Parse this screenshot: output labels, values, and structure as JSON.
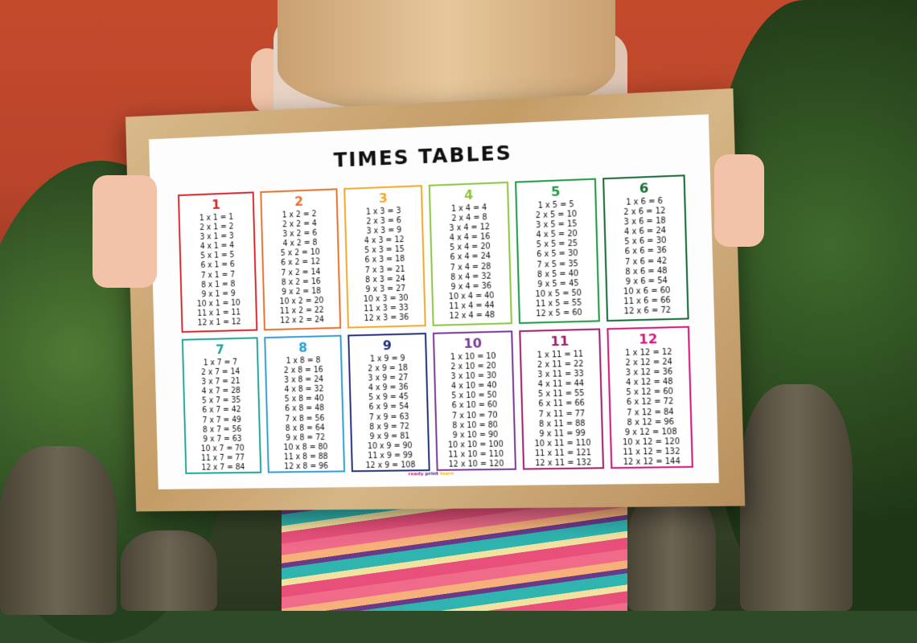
{
  "poster": {
    "title": "TIMES TABLES",
    "brand": {
      "word1": "ready",
      "word2": "print",
      "word3": "learn",
      "colors": [
        "#d4197e",
        "#4a2a7a",
        "#f2b51c"
      ]
    },
    "tables": [
      {
        "number": "1",
        "color": "#d8232a",
        "lines": [
          "1 x 1 = 1",
          "2 x 1 = 2",
          "3 x 1 = 3",
          "4 x 1 = 4",
          "5 x 1 = 5",
          "6 x 1 = 6",
          "7 x 1 = 7",
          "8 x 1 = 8",
          "9 x 1 = 9",
          "10 x 1 = 10",
          "11 x 1 = 11",
          "12 x 1 = 12"
        ]
      },
      {
        "number": "2",
        "color": "#e8702a",
        "lines": [
          "1 x 2 = 2",
          "2 x 2 = 4",
          "3 x 2 = 6",
          "4 x 2 = 8",
          "5 x 2 = 10",
          "6 x 2 = 12",
          "7 x 2 = 14",
          "8 x 2 = 16",
          "9 x 2 = 18",
          "10 x 2 = 20",
          "11 x 2 = 22",
          "12 x 2 = 24"
        ]
      },
      {
        "number": "3",
        "color": "#f2a82a",
        "lines": [
          "1 x 3 = 3",
          "2 x 3 = 6",
          "3 x 3 = 9",
          "4 x 3 = 12",
          "5 x 3 = 15",
          "6 x 3 = 18",
          "7 x 3 = 21",
          "8 x 3 = 24",
          "9 x 3 = 27",
          "10 x 3 = 30",
          "11 x 3 = 33",
          "12 x 3 = 36"
        ]
      },
      {
        "number": "4",
        "color": "#8dc63f",
        "lines": [
          "1 x 4 = 4",
          "2 x 4 = 8",
          "3 x 4 = 12",
          "4 x 4 = 16",
          "5 x 4 = 20",
          "6 x 4 = 24",
          "7 x 4 = 28",
          "8 x 4 = 32",
          "9 x 4 = 36",
          "10 x 4 = 40",
          "11 x 4 = 44",
          "12 x 4 = 48"
        ]
      },
      {
        "number": "5",
        "color": "#1e9b45",
        "lines": [
          "1 x 5 = 5",
          "2 x 5 = 10",
          "3 x 5 = 15",
          "4 x 5 = 20",
          "5 x 5 = 25",
          "6 x 5 = 30",
          "7 x 5 = 35",
          "8 x 5 = 40",
          "9 x 5 = 45",
          "10 x 5 = 50",
          "11 x 5 = 55",
          "12 x 5 = 60"
        ]
      },
      {
        "number": "6",
        "color": "#1a6b34",
        "lines": [
          "1 x 6 = 6",
          "2 x 6 = 12",
          "3 x 6 = 18",
          "4 x 6 = 24",
          "5 x 6 = 30",
          "6 x 6 = 36",
          "7 x 6 = 42",
          "8 x 6 = 48",
          "9 x 6 = 54",
          "10 x 6 = 60",
          "11 x 6 = 66",
          "12 x 6 = 72"
        ]
      },
      {
        "number": "7",
        "color": "#1aa59a",
        "lines": [
          "1 x 7 = 7",
          "2 x 7 = 14",
          "3 x 7 = 21",
          "4 x 7 = 28",
          "5 x 7 = 35",
          "6 x 7 = 42",
          "7 x 7 = 49",
          "8 x 7 = 56",
          "9 x 7 = 63",
          "10 x 7 = 70",
          "11 x 7 = 77",
          "12 x 7 = 84"
        ]
      },
      {
        "number": "8",
        "color": "#2a9fd6",
        "lines": [
          "1 x 8 = 8",
          "2 x 8 = 16",
          "3 x 8 = 24",
          "4 x 8 = 32",
          "5 x 8 = 40",
          "6 x 8 = 48",
          "7 x 8 = 56",
          "8 x 8 = 64",
          "9 x 8 = 72",
          "10 x 8 = 80",
          "11 x 8 = 88",
          "12 x 8 = 96"
        ]
      },
      {
        "number": "9",
        "color": "#22307a",
        "lines": [
          "1 x 9 = 9",
          "2 x 9 = 18",
          "3 x 9 = 27",
          "4 x 9 = 36",
          "5 x 9 = 45",
          "6 x 9 = 54",
          "7 x 9 = 63",
          "8 x 9 = 72",
          "9 x 9 = 81",
          "10 x 9 = 90",
          "11 x 9 = 99",
          "12 x 9 = 108"
        ]
      },
      {
        "number": "10",
        "color": "#7a3a96",
        "lines": [
          "1 x 10 = 10",
          "2 x 10 = 20",
          "3 x 10 = 30",
          "4 x 10 = 40",
          "5 x 10 = 50",
          "6 x 10 = 60",
          "7 x 10 = 70",
          "8 x 10 = 80",
          "9 x 10 = 90",
          "10 x 10 = 100",
          "11 x 10 = 110",
          "12 x 10 = 120"
        ]
      },
      {
        "number": "11",
        "color": "#a3206e",
        "lines": [
          "1 x 11 = 11",
          "2 x 11 = 22",
          "3 x 11 = 33",
          "4 x 11 = 44",
          "5 x 11 = 55",
          "6 x 11 = 66",
          "7 x 11 = 77",
          "8 x 11 = 88",
          "9 x 11 = 99",
          "10 x 11 = 110",
          "11 x 11 = 121",
          "12 x 11 = 132"
        ]
      },
      {
        "number": "12",
        "color": "#d4197e",
        "lines": [
          "1 x 12 = 12",
          "2 x 12 = 24",
          "3 x 12 = 36",
          "4 x 12 = 48",
          "5 x 12 = 60",
          "6 x 12 = 72",
          "7 x 12 = 84",
          "8 x 12 = 96",
          "9 x 12 = 108",
          "10 x 12 = 120",
          "11 x 12 = 132",
          "12 x 12 = 144"
        ]
      }
    ]
  }
}
